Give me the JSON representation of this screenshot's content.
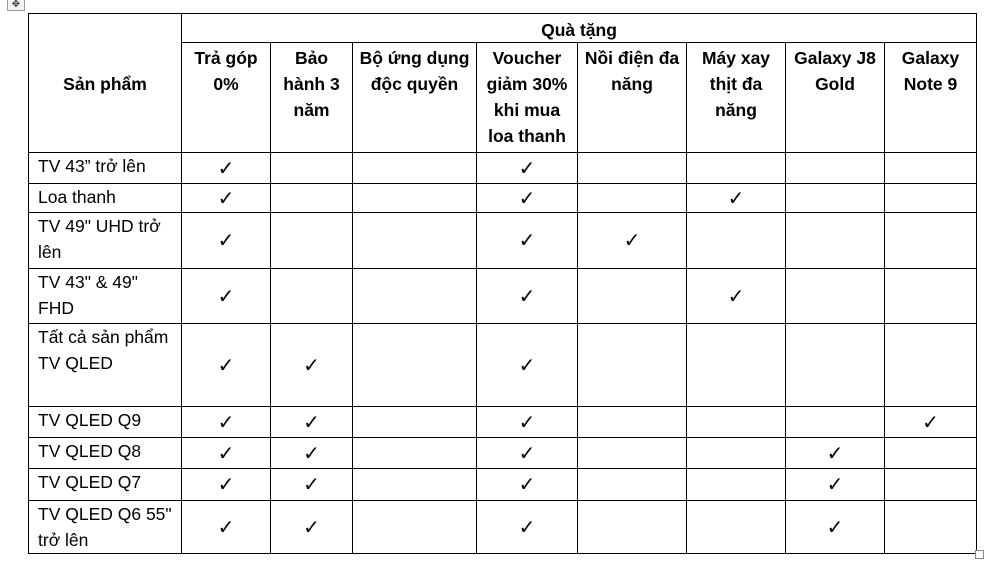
{
  "table": {
    "product_header": "Sản phẩm",
    "gift_group_header": "Quà tặng",
    "gift_columns": [
      "Trả góp 0%",
      "Bảo hành 3 năm",
      "Bộ ứng dụng độc quyền",
      "Voucher giảm 30% khi mua loa thanh",
      "Nồi điện đa năng",
      "Máy xay thịt đa năng",
      "Galaxy J8 Gold",
      "Galaxy Note 9"
    ],
    "check_mark": "✓",
    "rows": [
      {
        "product": "TV 43” trở lên",
        "checks": [
          true,
          false,
          false,
          true,
          false,
          false,
          false,
          false
        ]
      },
      {
        "product": "Loa thanh",
        "checks": [
          true,
          false,
          false,
          true,
          false,
          true,
          false,
          false
        ]
      },
      {
        "product": "TV 49\" UHD trở lên",
        "checks": [
          true,
          false,
          false,
          true,
          true,
          false,
          false,
          false
        ]
      },
      {
        "product": "TV 43\" & 49\" FHD",
        "checks": [
          true,
          false,
          false,
          true,
          false,
          true,
          false,
          false
        ]
      },
      {
        "product": "Tất cả sản phẩm TV QLED",
        "checks": [
          true,
          true,
          false,
          true,
          false,
          false,
          false,
          false
        ]
      },
      {
        "product": "TV QLED Q9",
        "checks": [
          true,
          true,
          false,
          true,
          false,
          false,
          false,
          true
        ]
      },
      {
        "product": "TV QLED Q8",
        "checks": [
          true,
          true,
          false,
          true,
          false,
          false,
          true,
          false
        ]
      },
      {
        "product": "TV QLED Q7",
        "checks": [
          true,
          true,
          false,
          true,
          false,
          false,
          true,
          false
        ]
      },
      {
        "product": "TV QLED Q6 55\" trở lên",
        "checks": [
          true,
          true,
          false,
          true,
          false,
          false,
          true,
          false
        ]
      }
    ]
  }
}
